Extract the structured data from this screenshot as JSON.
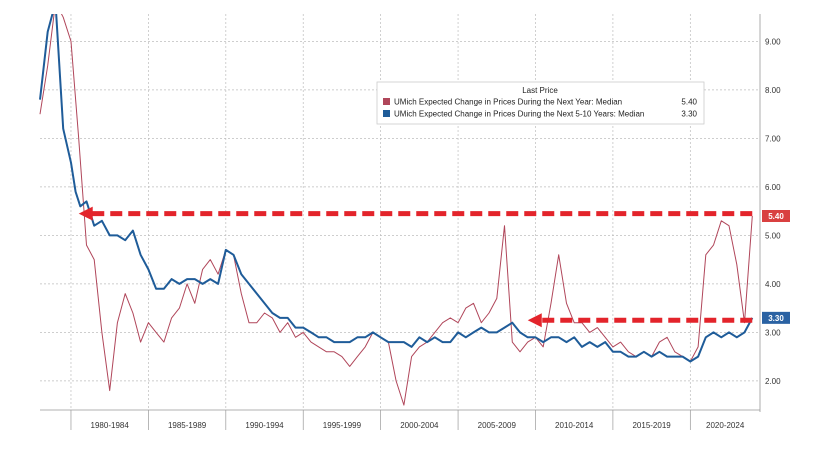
{
  "chart_data": {
    "type": "line",
    "title": "",
    "xlabel": "",
    "ylabel": "",
    "x_periods": [
      "1980-1984",
      "1985-1989",
      "1990-1994",
      "1995-1999",
      "2000-2004",
      "2005-2009",
      "2010-2014",
      "2015-2019",
      "2020-2024"
    ],
    "xlim": [
      1978,
      2024.5
    ],
    "ylim": [
      1.4,
      9.4
    ],
    "y_ticks": [
      "2.00",
      "3.00",
      "4.00",
      "5.00",
      "6.00",
      "7.00",
      "8.00",
      "9.00"
    ],
    "grid": true,
    "legend": {
      "title": "Last Price",
      "placement": "top-right",
      "entries": [
        {
          "label": "UMich Expected Change in Prices During the Next Year: Median",
          "value": "5.40",
          "color": "#b0465a"
        },
        {
          "label": "UMich Expected Change in Prices During the Next 5-10 Years: Median",
          "value": "3.30",
          "color": "#1f5c99"
        }
      ]
    },
    "last_value_badges": [
      {
        "text": "5.40",
        "y": 5.4,
        "color": "#d94040"
      },
      {
        "text": "3.30",
        "y": 3.3,
        "color": "#2a62a3"
      }
    ],
    "annotations": [
      {
        "type": "dashed-arrow",
        "y": 5.45,
        "x_from": 2024.0,
        "x_to": 1980.5,
        "color": "#e3242b"
      },
      {
        "type": "dashed-arrow",
        "y": 3.25,
        "x_from": 2024.0,
        "x_to": 2009.5,
        "color": "#e3242b"
      }
    ],
    "series": [
      {
        "name": "UMich Expected Change in Prices During the Next Year: Median",
        "color": "#b0465a",
        "x": [
          1978.0,
          1978.5,
          1979.0,
          1979.5,
          1980.0,
          1980.5,
          1981.0,
          1981.5,
          1982.0,
          1982.5,
          1983.0,
          1983.5,
          1984.0,
          1984.5,
          1985.0,
          1985.5,
          1986.0,
          1986.5,
          1987.0,
          1987.5,
          1988.0,
          1988.5,
          1989.0,
          1989.5,
          1990.0,
          1990.5,
          1991.0,
          1991.5,
          1992.0,
          1992.5,
          1993.0,
          1993.5,
          1994.0,
          1994.5,
          1995.0,
          1995.5,
          1996.0,
          1996.5,
          1997.0,
          1997.5,
          1998.0,
          1998.5,
          1999.0,
          1999.5,
          2000.0,
          2000.5,
          2001.0,
          2001.5,
          2002.0,
          2002.5,
          2003.0,
          2003.5,
          2004.0,
          2004.5,
          2005.0,
          2005.5,
          2006.0,
          2006.5,
          2007.0,
          2007.5,
          2008.0,
          2008.5,
          2009.0,
          2009.5,
          2010.0,
          2010.5,
          2011.0,
          2011.5,
          2012.0,
          2012.5,
          2013.0,
          2013.5,
          2014.0,
          2014.5,
          2015.0,
          2015.5,
          2016.0,
          2016.5,
          2017.0,
          2017.5,
          2018.0,
          2018.5,
          2019.0,
          2019.5,
          2020.0,
          2020.5,
          2021.0,
          2021.5,
          2022.0,
          2022.5,
          2023.0,
          2023.5,
          2024.0
        ],
        "values": [
          7.5,
          8.5,
          9.8,
          9.5,
          9.0,
          7.0,
          4.8,
          4.5,
          3.0,
          1.8,
          3.2,
          3.8,
          3.4,
          2.8,
          3.2,
          3.0,
          2.8,
          3.3,
          3.5,
          4.0,
          3.6,
          4.3,
          4.5,
          4.2,
          4.7,
          4.6,
          3.8,
          3.2,
          3.2,
          3.4,
          3.3,
          3.0,
          3.2,
          2.9,
          3.0,
          2.8,
          2.7,
          2.6,
          2.6,
          2.5,
          2.3,
          2.5,
          2.7,
          3.0,
          2.9,
          2.8,
          2.0,
          1.5,
          2.5,
          2.7,
          2.8,
          3.0,
          3.2,
          3.3,
          3.2,
          3.5,
          3.6,
          3.2,
          3.4,
          3.7,
          5.2,
          2.8,
          2.6,
          2.8,
          2.9,
          2.7,
          3.6,
          4.6,
          3.6,
          3.2,
          3.2,
          3.0,
          3.1,
          2.9,
          2.7,
          2.8,
          2.6,
          2.5,
          2.6,
          2.5,
          2.8,
          2.9,
          2.6,
          2.5,
          2.4,
          2.7,
          4.6,
          4.8,
          5.3,
          5.2,
          4.4,
          3.2,
          5.4
        ]
      },
      {
        "name": "UMich Expected Change in Prices During the Next 5-10 Years: Median",
        "color": "#1f5c99",
        "x": [
          1978.0,
          1978.5,
          1979.0,
          1979.5,
          1980.0,
          1980.3,
          1980.6,
          1981.0,
          1981.5,
          1982.0,
          1982.5,
          1983.0,
          1983.5,
          1984.0,
          1984.5,
          1985.0,
          1985.5,
          1986.0,
          1986.5,
          1987.0,
          1987.5,
          1988.0,
          1988.5,
          1989.0,
          1989.5,
          1990.0,
          1990.5,
          1991.0,
          1991.5,
          1992.0,
          1992.5,
          1993.0,
          1993.5,
          1994.0,
          1994.5,
          1995.0,
          1995.5,
          1996.0,
          1996.5,
          1997.0,
          1997.5,
          1998.0,
          1998.5,
          1999.0,
          1999.5,
          2000.0,
          2000.5,
          2001.0,
          2001.5,
          2002.0,
          2002.5,
          2003.0,
          2003.5,
          2004.0,
          2004.5,
          2005.0,
          2005.5,
          2006.0,
          2006.5,
          2007.0,
          2007.5,
          2008.0,
          2008.5,
          2009.0,
          2009.5,
          2010.0,
          2010.5,
          2011.0,
          2011.5,
          2012.0,
          2012.5,
          2013.0,
          2013.5,
          2014.0,
          2014.5,
          2015.0,
          2015.5,
          2016.0,
          2016.5,
          2017.0,
          2017.5,
          2018.0,
          2018.5,
          2019.0,
          2019.5,
          2020.0,
          2020.5,
          2021.0,
          2021.5,
          2022.0,
          2022.5,
          2023.0,
          2023.5,
          2024.0
        ],
        "values": [
          7.8,
          9.2,
          9.8,
          7.2,
          6.5,
          5.9,
          5.6,
          5.7,
          5.2,
          5.3,
          5.0,
          5.0,
          4.9,
          5.1,
          4.6,
          4.3,
          3.9,
          3.9,
          4.1,
          4.0,
          4.1,
          4.1,
          4.0,
          4.1,
          4.0,
          4.7,
          4.6,
          4.2,
          4.0,
          3.8,
          3.6,
          3.4,
          3.3,
          3.3,
          3.1,
          3.1,
          3.0,
          2.9,
          2.9,
          2.8,
          2.8,
          2.8,
          2.9,
          2.9,
          3.0,
          2.9,
          2.8,
          2.8,
          2.8,
          2.7,
          2.9,
          2.8,
          2.9,
          2.8,
          2.8,
          3.0,
          2.9,
          3.0,
          3.1,
          3.0,
          3.0,
          3.1,
          3.2,
          3.0,
          2.9,
          2.9,
          2.8,
          2.9,
          2.9,
          2.8,
          2.9,
          2.7,
          2.8,
          2.7,
          2.8,
          2.6,
          2.6,
          2.5,
          2.5,
          2.6,
          2.5,
          2.6,
          2.5,
          2.5,
          2.5,
          2.4,
          2.5,
          2.9,
          3.0,
          2.9,
          3.0,
          2.9,
          3.0,
          3.3
        ]
      }
    ]
  }
}
